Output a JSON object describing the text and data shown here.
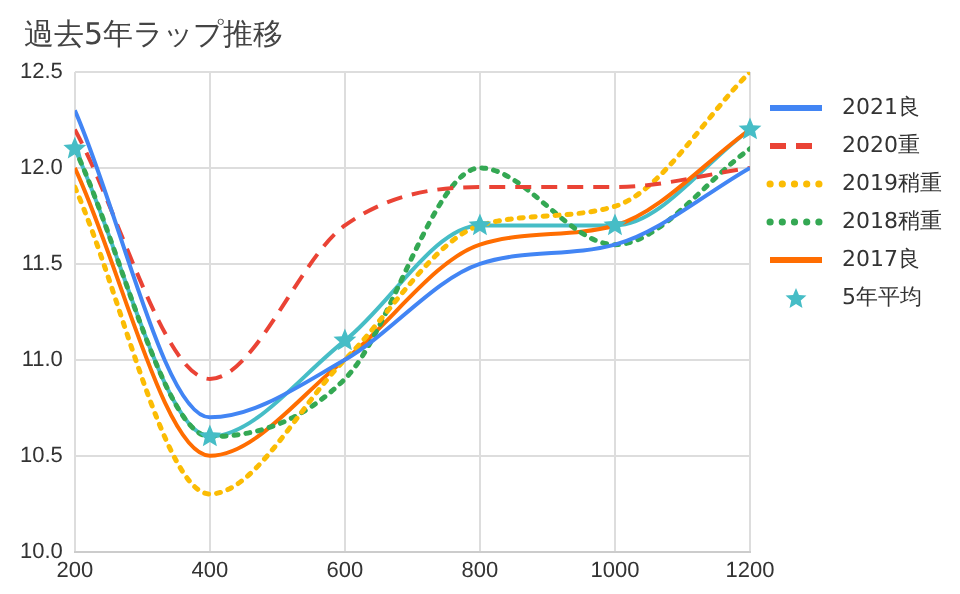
{
  "chart_data": {
    "type": "line",
    "title": "過去5年ラップ推移",
    "x": [
      200,
      400,
      600,
      800,
      1000,
      1200
    ],
    "xlim": [
      200,
      1200
    ],
    "xticks": [
      200,
      400,
      600,
      800,
      1000,
      1200
    ],
    "ylim": [
      10.0,
      12.5
    ],
    "yticks": [
      {
        "value": 10.0,
        "label": "10.0"
      },
      {
        "value": 10.5,
        "label": "10.5"
      },
      {
        "value": 11.0,
        "label": "11.0"
      },
      {
        "value": 11.5,
        "label": "11.5"
      },
      {
        "value": 12.0,
        "label": "12.0"
      },
      {
        "value": 12.5,
        "label": "12.5"
      }
    ],
    "grid": true,
    "legend": "right",
    "series": [
      {
        "name": "2021良",
        "color": "#4285f4",
        "line_style": "solid",
        "marker": "none",
        "values": [
          12.3,
          10.7,
          11.0,
          11.5,
          11.6,
          12.0
        ]
      },
      {
        "name": "2020重",
        "color": "#ea4335",
        "line_style": "dashed",
        "marker": "none",
        "values": [
          12.2,
          10.9,
          11.7,
          11.9,
          11.9,
          12.0
        ]
      },
      {
        "name": "2019稍重",
        "color": "#fbbc04",
        "line_style": "dotted",
        "marker": "none",
        "values": [
          11.9,
          10.3,
          11.0,
          11.7,
          11.8,
          12.5
        ]
      },
      {
        "name": "2018稍重",
        "color": "#34a853",
        "line_style": "dotted",
        "marker": "none",
        "values": [
          12.1,
          10.6,
          10.9,
          12.0,
          11.6,
          12.1
        ]
      },
      {
        "name": "2017良",
        "color": "#ff6d01",
        "line_style": "solid",
        "marker": "none",
        "values": [
          12.0,
          10.5,
          11.0,
          11.6,
          11.7,
          12.2
        ]
      },
      {
        "name": "5年平均",
        "color": "#46bdc6",
        "line_style": "solid",
        "marker": "star",
        "values": [
          12.1,
          10.6,
          11.1,
          11.7,
          11.7,
          12.2
        ]
      }
    ]
  }
}
